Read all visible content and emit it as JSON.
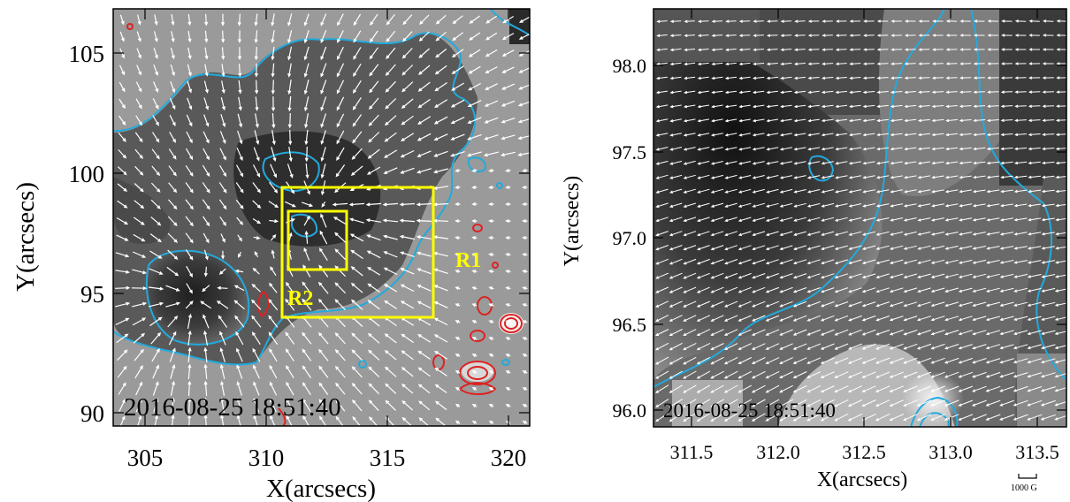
{
  "left_panel": {
    "timestamp": "2016-08-25 18:51:40",
    "xlabel": "X(arcsecs)",
    "ylabel": "Y(arcsecs)",
    "xticks": [
      "305",
      "310",
      "315",
      "320"
    ],
    "yticks": [
      "90",
      "95",
      "100",
      "105"
    ],
    "region_labels": [
      "R1",
      "R2"
    ]
  },
  "right_panel": {
    "timestamp": "2016-08-25 18:51:40",
    "xlabel": "X(arcsecs)",
    "ylabel": "Y(arcsecs)",
    "xticks": [
      "311.5",
      "312.0",
      "312.5",
      "313.0",
      "313.5"
    ],
    "yticks": [
      "96.0",
      "96.5",
      "97.0",
      "97.5",
      "98.0"
    ],
    "scale_label": "1000 G"
  },
  "colors": {
    "contour_negative": "#22aadd",
    "contour_positive": "#dd2222",
    "region_box": "#ffff00",
    "vector": "#ffffff"
  }
}
